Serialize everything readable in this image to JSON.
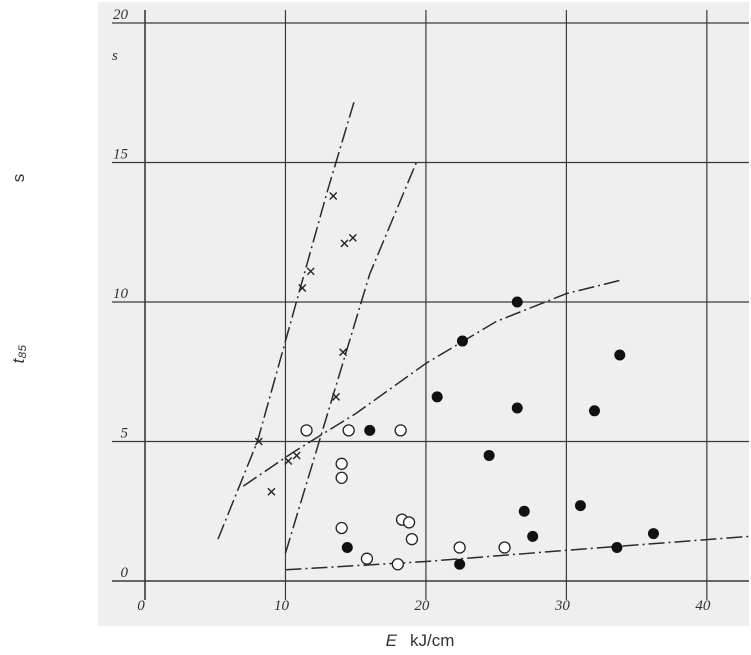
{
  "chart_data": {
    "type": "scatter",
    "title": "",
    "xlabel": {
      "symbol": "E",
      "unit": "kJ/cm"
    },
    "ylabel": {
      "symbol": "t₈₅",
      "unit": "s"
    },
    "y_unit_near_axis": "s",
    "xlim": [
      0,
      43
    ],
    "ylim": [
      0,
      20
    ],
    "x_ticks": [
      0,
      10,
      20,
      30,
      40
    ],
    "y_ticks": [
      0,
      5,
      10,
      15,
      20
    ],
    "grid": true,
    "series": [
      {
        "marker": "cross",
        "points": [
          [
            8.1,
            5.0
          ],
          [
            9.0,
            3.2
          ],
          [
            10.2,
            4.3
          ],
          [
            10.8,
            4.5
          ],
          [
            11.2,
            10.5
          ],
          [
            11.8,
            11.1
          ],
          [
            13.4,
            13.8
          ],
          [
            14.2,
            12.1
          ],
          [
            14.8,
            12.3
          ],
          [
            14.1,
            8.2
          ],
          [
            13.6,
            6.6
          ]
        ]
      },
      {
        "marker": "open-circle",
        "points": [
          [
            11.5,
            5.4
          ],
          [
            14.5,
            5.4
          ],
          [
            18.2,
            5.4
          ],
          [
            14.0,
            4.2
          ],
          [
            14.0,
            3.7
          ],
          [
            14.0,
            1.9
          ],
          [
            18.3,
            2.2
          ],
          [
            18.8,
            2.1
          ],
          [
            19.0,
            1.5
          ],
          [
            15.8,
            0.8
          ],
          [
            18.0,
            0.6
          ],
          [
            22.4,
            1.2
          ],
          [
            25.6,
            1.2
          ]
        ]
      },
      {
        "marker": "filled-circle",
        "points": [
          [
            16.0,
            5.4
          ],
          [
            14.4,
            1.2
          ],
          [
            22.6,
            8.6
          ],
          [
            26.5,
            10.0
          ],
          [
            20.8,
            6.6
          ],
          [
            26.5,
            6.2
          ],
          [
            32.0,
            6.1
          ],
          [
            33.8,
            8.1
          ],
          [
            24.5,
            4.5
          ],
          [
            27.0,
            2.5
          ],
          [
            27.6,
            1.6
          ],
          [
            31.0,
            2.7
          ],
          [
            33.6,
            1.2
          ],
          [
            36.2,
            1.7
          ],
          [
            22.4,
            0.6
          ]
        ]
      }
    ],
    "curves": [
      {
        "style": "dash-dot",
        "points": [
          [
            5.2,
            1.5
          ],
          [
            8.0,
            5.0
          ],
          [
            10.5,
            9.5
          ],
          [
            13.0,
            14.0
          ],
          [
            14.9,
            17.2
          ]
        ]
      },
      {
        "style": "dash-dot",
        "points": [
          [
            10.0,
            1.0
          ],
          [
            13.0,
            6.0
          ],
          [
            16.0,
            11.0
          ],
          [
            19.4,
            15.1
          ]
        ]
      },
      {
        "style": "dash-dot",
        "points": [
          [
            7.0,
            3.4
          ],
          [
            10.5,
            4.6
          ],
          [
            15.0,
            6.0
          ],
          [
            20.0,
            7.8
          ],
          [
            25.0,
            9.3
          ],
          [
            30.0,
            10.3
          ],
          [
            34.0,
            10.8
          ]
        ]
      },
      {
        "style": "dash-dot",
        "points": [
          [
            10.0,
            0.4
          ],
          [
            20.0,
            0.7
          ],
          [
            30.0,
            1.1
          ],
          [
            43.0,
            1.6
          ]
        ]
      }
    ]
  }
}
